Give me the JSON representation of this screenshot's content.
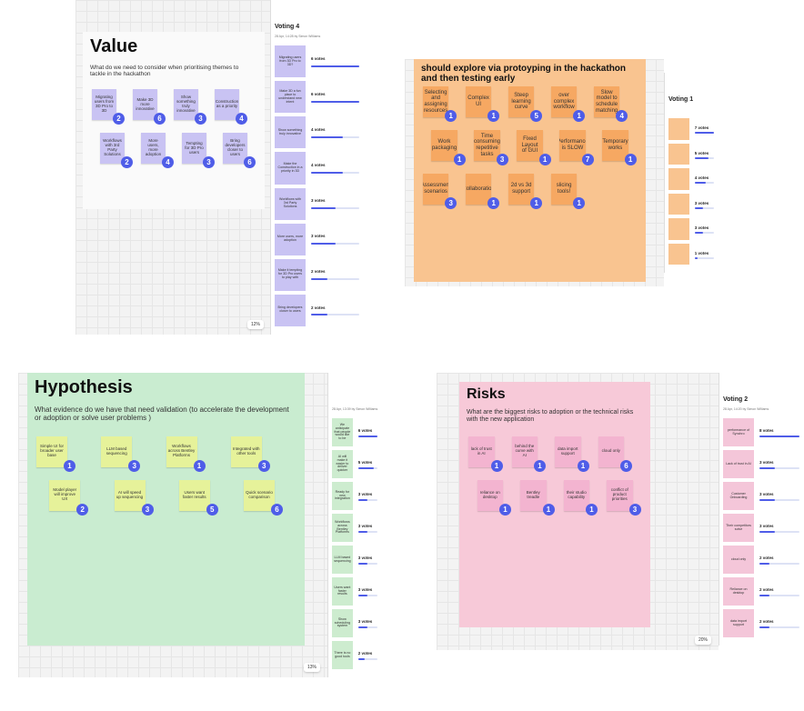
{
  "panels": [
    {
      "title": "Value",
      "subtitle": "What do we need to consider when prioritising themes to tackle in the hackathon",
      "zoom": "12%",
      "notes": [
        {
          "text": "Migrating users from 3D Pro to 3D",
          "badge": "2"
        },
        {
          "text": "Make 3D more innovative",
          "badge": "6"
        },
        {
          "text": "Show something truly innovative",
          "badge": "3"
        },
        {
          "text": "Construction as a priority",
          "badge": "4"
        },
        {
          "text": "Workflows with 3rd Party Solutions",
          "badge": "2"
        },
        {
          "text": "More users, more adoption",
          "badge": "4"
        },
        {
          "text": "Tempting for 3D Pro users",
          "badge": "3"
        },
        {
          "text": "Bring developers closer to users",
          "badge": "6"
        }
      ],
      "voting": {
        "title": "Voting 4",
        "meta": "28 Apr, 14:28 by Simon Williams",
        "color": "#c9c3f3",
        "max": 6,
        "items": [
          {
            "text": "Migrating users from 3D Pro to 3D?",
            "votes": 6,
            "vote_label": "6 votes"
          },
          {
            "text": "Make 3D a fun place to understand new intent",
            "votes": 6,
            "vote_label": "6 votes"
          },
          {
            "text": "Show something truly innovative",
            "votes": 4,
            "vote_label": "4 votes"
          },
          {
            "text": "Make the Construction in a priority in 3D",
            "votes": 4,
            "vote_label": "4 votes"
          },
          {
            "text": "Workflows with 3rd Party Solutions",
            "votes": 3,
            "vote_label": "3 votes"
          },
          {
            "text": "More users, more adoption",
            "votes": 3,
            "vote_label": "3 votes"
          },
          {
            "text": "Make it tempting for 3D Pro users to play with",
            "votes": 2,
            "vote_label": "2 votes"
          },
          {
            "text": "Bring developers closer to users",
            "votes": 2,
            "vote_label": "2 votes"
          }
        ]
      }
    },
    {
      "title": "should explore via protoyping in the hackathon and then testing early",
      "zoom": "",
      "notes": [
        {
          "text": "Selecting and assigning resources",
          "badge": "1"
        },
        {
          "text": "Complex UI",
          "badge": "1"
        },
        {
          "text": "Steep learning curve",
          "badge": "5"
        },
        {
          "text": "over complex workflow",
          "badge": "1"
        },
        {
          "text": "Slow model to schedule matching",
          "badge": "4"
        },
        {
          "text": "Work packaging",
          "badge": "1"
        },
        {
          "text": "Time consuming repetitive tasks",
          "badge": "3"
        },
        {
          "text": "Fixed Layout of GUI",
          "badge": "1"
        },
        {
          "text": "Performance is SLOW",
          "badge": "7"
        },
        {
          "text": "Temporary works",
          "badge": "1"
        },
        {
          "text": "Assessment scenarios",
          "badge": "3"
        },
        {
          "text": "Collaboration",
          "badge": "1"
        },
        {
          "text": "2d vs 3d support",
          "badge": "1"
        },
        {
          "text": "slicing tools!",
          "badge": "1"
        }
      ],
      "voting": {
        "title": "Voting 1",
        "meta": "",
        "color": "#f9c490",
        "max": 7,
        "items": [
          {
            "text": "",
            "votes": 7,
            "vote_label": "7 votes"
          },
          {
            "text": "",
            "votes": 5,
            "vote_label": "5 votes"
          },
          {
            "text": "",
            "votes": 4,
            "vote_label": "4 votes"
          },
          {
            "text": "",
            "votes": 3,
            "vote_label": "3 votes"
          },
          {
            "text": "",
            "votes": 3,
            "vote_label": "3 votes"
          },
          {
            "text": "",
            "votes": 1,
            "vote_label": "1 votes"
          }
        ]
      }
    },
    {
      "title": "Hypothesis",
      "subtitle": "What evidence do we have that need validation (to accelerate the development or adoption or solve user problems )",
      "zoom": "13%",
      "notes": [
        {
          "text": "Simple UI for broader user base",
          "badge": "1"
        },
        {
          "text": "LLM based sequencing",
          "badge": "3"
        },
        {
          "text": "Workflows across Bentley Platforms",
          "badge": "1"
        },
        {
          "text": "Integrated with other tools",
          "badge": "3"
        },
        {
          "text": "Model player will improve UX",
          "badge": "2"
        },
        {
          "text": "AI will speed up sequencing",
          "badge": "3"
        },
        {
          "text": "Users want faster results",
          "badge": "5"
        },
        {
          "text": "Quick scenario comparison",
          "badge": "6"
        }
      ],
      "voting": {
        "title": "",
        "meta": "28 Apr, 13:39 by Simon Williams",
        "color": "#cdeccf",
        "max": 6,
        "items": [
          {
            "text": "We anticipate that people would like to be",
            "votes": 6,
            "vote_label": "6 votes"
          },
          {
            "text": "AI will make it easier to deliver quicker",
            "votes": 5,
            "vote_label": "5 votes"
          },
          {
            "text": "Ready for new integration",
            "votes": 3,
            "vote_label": "3 votes"
          },
          {
            "text": "Workflows across Bentley Platforms",
            "votes": 3,
            "vote_label": "3 votes"
          },
          {
            "text": "LLM based sequencing",
            "votes": 3,
            "vote_label": "3 votes"
          },
          {
            "text": "Users want faster results",
            "votes": 3,
            "vote_label": "3 votes"
          },
          {
            "text": "Show scheduling system",
            "votes": 3,
            "vote_label": "3 votes"
          },
          {
            "text": "There is no good tools",
            "votes": 2,
            "vote_label": "2 votes"
          }
        ]
      }
    },
    {
      "title": "Risks",
      "subtitle": "What are the biggest risks to adoption or the technical risks with the new application",
      "zoom": "20%",
      "notes": [
        {
          "text": "lack of trust in AI",
          "badge": "1"
        },
        {
          "text": "behind the curve with AI",
          "badge": "1"
        },
        {
          "text": "data import support",
          "badge": "1"
        },
        {
          "text": "cloud only",
          "badge": "6"
        },
        {
          "text": "reliance on desktop",
          "badge": "1"
        },
        {
          "text": "Bentley treadle",
          "badge": "1"
        },
        {
          "text": "their studio capability",
          "badge": "1"
        },
        {
          "text": "conflict of product priorities",
          "badge": "3"
        }
      ],
      "voting": {
        "title": "Voting 2",
        "meta": "28 Apr, 14:20 by Simon Williams",
        "color": "#f4c6d9",
        "max": 8,
        "items": [
          {
            "text": "performance of Synchro",
            "votes": 8,
            "vote_label": "8 votes"
          },
          {
            "text": "Lack of trust in AI",
            "votes": 3,
            "vote_label": "3 votes"
          },
          {
            "text": "Customer Onboarding",
            "votes": 3,
            "vote_label": "3 votes"
          },
          {
            "text": "Their competitors solve",
            "votes": 3,
            "vote_label": "3 votes"
          },
          {
            "text": "cloud only",
            "votes": 2,
            "vote_label": "2 votes"
          },
          {
            "text": "Reliance on desktop",
            "votes": 2,
            "vote_label": "2 votes"
          },
          {
            "text": "data import support",
            "votes": 2,
            "vote_label": "2 votes"
          }
        ]
      }
    }
  ]
}
